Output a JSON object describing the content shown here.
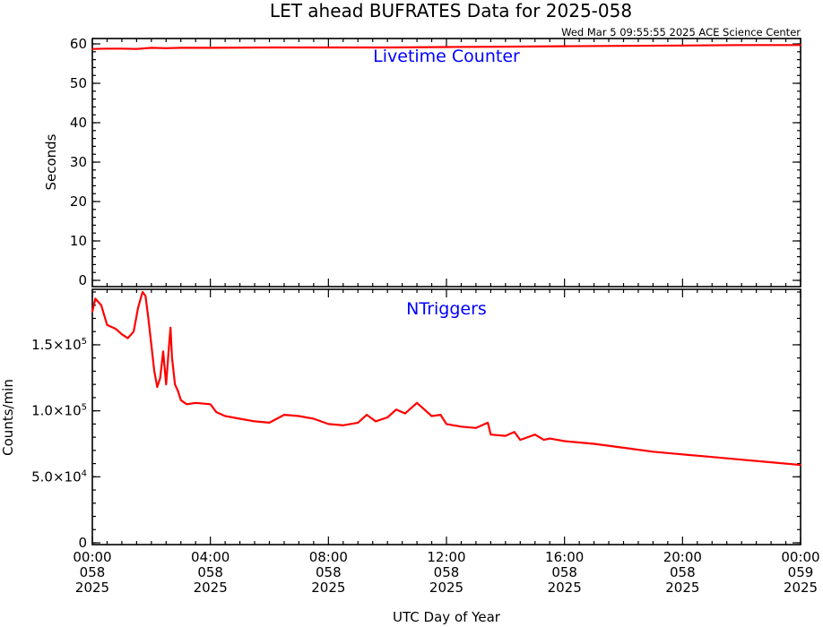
{
  "title": "LET ahead BUFRATES Data for 2025-058",
  "timestamp": "Wed Mar  5 09:55:55 2025 ACE Science Center",
  "xlabel": "UTC Day of Year",
  "x_ticks": [
    {
      "time": "00:00",
      "doy": "058",
      "year": "2025"
    },
    {
      "time": "04:00",
      "doy": "058",
      "year": "2025"
    },
    {
      "time": "08:00",
      "doy": "058",
      "year": "2025"
    },
    {
      "time": "12:00",
      "doy": "058",
      "year": "2025"
    },
    {
      "time": "16:00",
      "doy": "058",
      "year": "2025"
    },
    {
      "time": "20:00",
      "doy": "058",
      "year": "2025"
    },
    {
      "time": "00:00",
      "doy": "059",
      "year": "2025"
    }
  ],
  "colors": {
    "series": "#ff0000",
    "panel_title": "#0000ff",
    "axes": "#000000"
  },
  "chart_data": [
    {
      "type": "line",
      "title": "Livetime Counter",
      "ylabel": "Seconds",
      "xlim_hours": [
        0,
        24
      ],
      "ylim": [
        0,
        60
      ],
      "y_ticks": [
        0,
        10,
        20,
        30,
        40,
        50,
        60
      ],
      "y_tick_labels": [
        "0",
        "10",
        "20",
        "30",
        "40",
        "50",
        "60"
      ],
      "series": [
        {
          "x_hours": [
            0,
            0.5,
            1,
            1.5,
            2,
            2.5,
            3,
            4,
            6,
            8,
            10,
            12,
            14,
            16,
            18,
            20,
            22,
            24
          ],
          "values": [
            58.7,
            58.8,
            58.8,
            58.7,
            59.0,
            58.9,
            59.0,
            59.0,
            59.1,
            59.1,
            59.1,
            59.2,
            59.3,
            59.4,
            59.5,
            59.6,
            59.7,
            59.7
          ]
        }
      ]
    },
    {
      "type": "line",
      "title": "NTriggers",
      "ylabel": "Counts/min",
      "xlim_hours": [
        0,
        24
      ],
      "ylim": [
        0,
        190000
      ],
      "y_ticks": [
        0,
        50000,
        100000,
        150000
      ],
      "y_tick_labels": [
        {
          "base": "0",
          "exp": ""
        },
        {
          "base": "5.0×10",
          "exp": "4"
        },
        {
          "base": "1.0×10",
          "exp": "5"
        },
        {
          "base": "1.5×10",
          "exp": "5"
        }
      ],
      "series": [
        {
          "x_hours": [
            0,
            0.1,
            0.3,
            0.5,
            0.8,
            1.0,
            1.2,
            1.4,
            1.55,
            1.7,
            1.8,
            1.9,
            2.0,
            2.1,
            2.2,
            2.3,
            2.4,
            2.5,
            2.6,
            2.65,
            2.7,
            2.8,
            2.9,
            3.0,
            3.2,
            3.5,
            4.0,
            4.2,
            4.5,
            5.0,
            5.5,
            6.0,
            6.5,
            7.0,
            7.5,
            8.0,
            8.5,
            9.0,
            9.3,
            9.6,
            10.0,
            10.3,
            10.6,
            11.0,
            11.2,
            11.5,
            11.8,
            12.0,
            12.5,
            13.0,
            13.4,
            13.5,
            14.0,
            14.3,
            14.5,
            15.0,
            15.3,
            15.5,
            16.0,
            17.0,
            18.0,
            19.0,
            20.0,
            21.0,
            22.0,
            23.0,
            24.0
          ],
          "values": [
            175000,
            185000,
            180000,
            165000,
            162000,
            158000,
            155000,
            160000,
            178000,
            190000,
            187000,
            170000,
            150000,
            130000,
            118000,
            125000,
            145000,
            120000,
            150000,
            163000,
            140000,
            120000,
            115000,
            108000,
            105000,
            106000,
            105000,
            99000,
            96000,
            94000,
            92000,
            91000,
            97000,
            96000,
            94000,
            90000,
            89000,
            91000,
            97000,
            92000,
            95000,
            101000,
            98000,
            106000,
            102000,
            96000,
            97000,
            90000,
            88000,
            87000,
            91000,
            82000,
            81000,
            84000,
            78000,
            82000,
            78000,
            79000,
            77000,
            75000,
            72000,
            69000,
            67000,
            65000,
            63000,
            61000,
            59000
          ]
        }
      ]
    }
  ]
}
